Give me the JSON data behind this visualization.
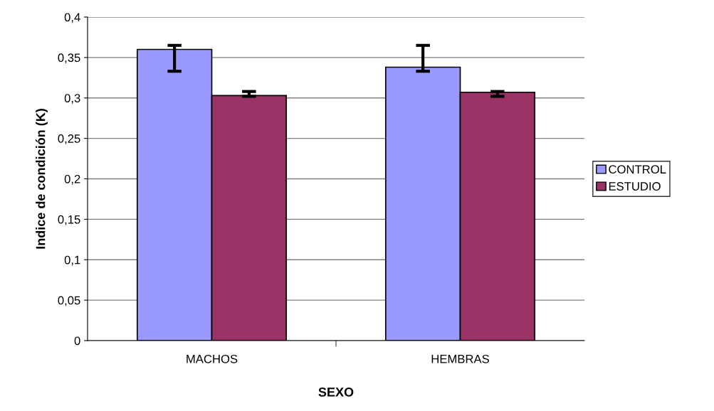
{
  "chart_data": {
    "type": "bar",
    "xlabel": "SEXO",
    "ylabel": "Indice de condición (K)",
    "categories": [
      "MACHOS",
      "HEMBRAS"
    ],
    "series": [
      {
        "name": "CONTROL",
        "color": "#9999ff",
        "values": [
          0.36,
          0.338
        ],
        "errors": [
          [
            0.333,
            0.365
          ],
          [
            0.333,
            0.365
          ]
        ]
      },
      {
        "name": "ESTUDIO",
        "color": "#993366",
        "values": [
          0.303,
          0.307
        ],
        "errors": [
          [
            0.302,
            0.308
          ],
          [
            0.302,
            0.308
          ]
        ]
      }
    ],
    "ylim": [
      0,
      0.4
    ],
    "yticks": [
      {
        "value": 0,
        "label": "0"
      },
      {
        "value": 0.05,
        "label": "0,05"
      },
      {
        "value": 0.1,
        "label": "0,1"
      },
      {
        "value": 0.15,
        "label": "0,15"
      },
      {
        "value": 0.2,
        "label": "0,2"
      },
      {
        "value": 0.25,
        "label": "0,25"
      },
      {
        "value": 0.3,
        "label": "0,3"
      },
      {
        "value": 0.35,
        "label": "0,35"
      },
      {
        "value": 0.4,
        "label": "0,4"
      }
    ],
    "grid": "y",
    "legend": "right"
  }
}
